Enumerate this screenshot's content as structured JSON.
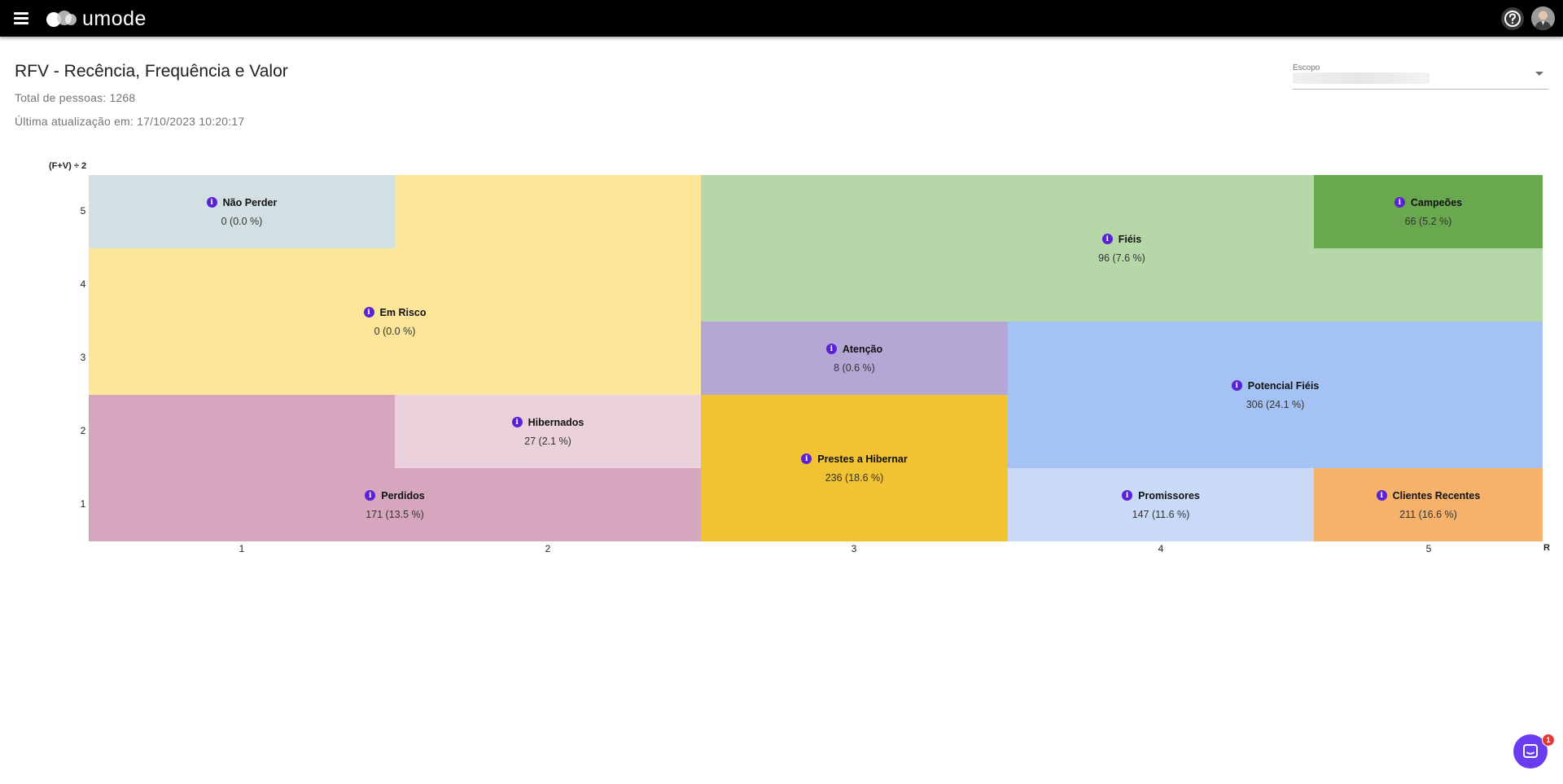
{
  "header": {
    "brand": "umode",
    "menu_icon": "hamburger-menu-icon",
    "help_icon": "help-circle-icon",
    "bg_color": "#000000"
  },
  "page": {
    "title": "RFV - Recência, Frequência e Valor",
    "total_label": "Total de pessoas: 1268",
    "updated_label": "Última atualização em: 17/10/2023 10:20:17"
  },
  "scope": {
    "label": "Escopo",
    "value": ""
  },
  "matrix": {
    "y_axis_title": "(F+V) ÷ 2",
    "x_axis_title": "R",
    "y_ticks": [
      "5",
      "4",
      "3",
      "2",
      "1"
    ],
    "x_ticks": [
      "1",
      "2",
      "3",
      "4",
      "5"
    ],
    "segments": [
      {
        "name": "Não Perder",
        "stat": "0 (0.0 %)",
        "color": "#d2e0e4"
      },
      {
        "name": "Em Risco",
        "stat": "0 (0.0 %)",
        "color": "#fde59a"
      },
      {
        "name": "Fiéis",
        "stat": "96 (7.6 %)",
        "color": "#b6d7a8"
      },
      {
        "name": "Campeões",
        "stat": "66 (5.2 %)",
        "color": "#6aa84f"
      },
      {
        "name": "Atenção",
        "stat": "8 (0.6 %)",
        "color": "#b4a7d6"
      },
      {
        "name": "Potencial Fiéis",
        "stat": "306 (24.1 %)",
        "color": "#a4c2f4"
      },
      {
        "name": "Hibernados",
        "stat": "27 (2.1 %)",
        "color": "#ead1dc"
      },
      {
        "name": "Prestes a Hibernar",
        "stat": "236 (18.6 %)",
        "color": "#f1c232"
      },
      {
        "name": "Perdidos",
        "stat": "171 (13.5 %)",
        "color": "#d5a6bd"
      },
      {
        "name": "Promissores",
        "stat": "147 (11.6 %)",
        "color": "#c9daf8"
      },
      {
        "name": "Clientes Recentes",
        "stat": "211 (16.6 %)",
        "color": "#f6b26b"
      }
    ]
  },
  "chat": {
    "icon": "chat-icon",
    "badge": "1"
  }
}
